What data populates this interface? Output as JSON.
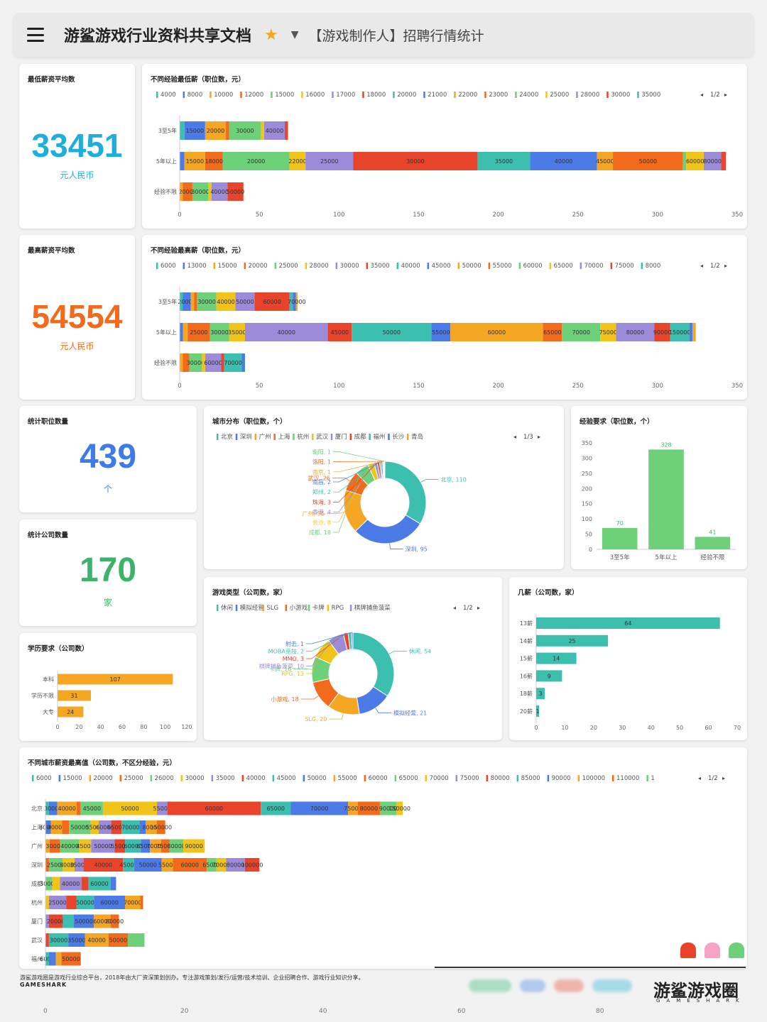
{
  "header": {
    "title": "游鲨游戏行业资料共享文档",
    "subtitle": "【游戏制作人】招聘行情统计"
  },
  "palette": [
    "#3cbfae",
    "#4c7be8",
    "#f5a623",
    "#f26b1d",
    "#6fd07a",
    "#f0c419",
    "#9b8bd9",
    "#e8442c"
  ],
  "kpis": {
    "min_salary": {
      "title": "最低薪资平均数",
      "value": "33451",
      "unit": "元人民币",
      "color": "#1eaedb"
    },
    "max_salary": {
      "title": "最高薪资平均数",
      "value": "54554",
      "unit": "元人民币",
      "color": "#f26b1d"
    },
    "positions": {
      "title": "统计职位数量",
      "value": "439",
      "unit": "个",
      "color": "#3d7be8"
    },
    "companies": {
      "title": "统计公司数量",
      "value": "170",
      "unit": "家",
      "color": "#3bb36a"
    }
  },
  "chart_data": [
    {
      "id": "min_salary_by_exp",
      "type": "bar",
      "title": "不同经验最低薪（职位数，元）",
      "legend": [
        "4000",
        "8000",
        "10000",
        "12000",
        "15000",
        "16000",
        "17000",
        "18000",
        "20000",
        "21000",
        "22000",
        "23000",
        "24000",
        "25000",
        "28000",
        "30000",
        "35000"
      ],
      "legend_page": "1/2",
      "xlim": [
        0,
        350
      ],
      "xticks": [
        "0",
        "50",
        "100",
        "150",
        "200",
        "250",
        "300",
        "350"
      ],
      "rows": [
        {
          "label": "3至5年",
          "segments": [
            {
              "v": 3,
              "t": ""
            },
            {
              "v": 13,
              "t": "15000"
            },
            {
              "v": 13,
              "t": "20000"
            },
            {
              "v": 2,
              "t": ""
            },
            {
              "v": 20,
              "t": "30000"
            },
            {
              "v": 2,
              "t": ""
            },
            {
              "v": 13,
              "t": "40000"
            },
            {
              "v": 2,
              "t": ""
            }
          ]
        },
        {
          "label": "5年以上",
          "segments": [
            {
              "v": 3,
              "t": ""
            },
            {
              "v": 13,
              "t": "15000"
            },
            {
              "v": 11,
              "t": "18000"
            },
            {
              "v": 42,
              "t": "20000"
            },
            {
              "v": 10,
              "t": "22000"
            },
            {
              "v": 30,
              "t": "25000"
            },
            {
              "v": 78,
              "t": "30000"
            },
            {
              "v": 33,
              "t": "35000"
            },
            {
              "v": 42,
              "t": "40000"
            },
            {
              "v": 10,
              "t": "45000"
            },
            {
              "v": 44,
              "t": "50000"
            },
            {
              "v": 2,
              "t": ""
            },
            {
              "v": 11,
              "t": "60000"
            },
            {
              "v": 11,
              "t": "80000"
            },
            {
              "v": 3,
              "t": ""
            }
          ]
        },
        {
          "label": "经验不限",
          "segments": [
            {
              "v": 2,
              "t": ""
            },
            {
              "v": 6,
              "t": "20000"
            },
            {
              "v": 10,
              "t": "30000"
            },
            {
              "v": 2,
              "t": ""
            },
            {
              "v": 10,
              "t": "40000"
            },
            {
              "v": 10,
              "t": "50000"
            }
          ]
        }
      ]
    },
    {
      "id": "max_salary_by_exp",
      "type": "bar",
      "title": "不同经验最高薪（职位数，元）",
      "legend": [
        "6000",
        "13000",
        "15000",
        "20000",
        "25000",
        "28000",
        "30000",
        "35000",
        "40000",
        "45000",
        "50000",
        "55000",
        "60000",
        "65000",
        "70000",
        "75000",
        "8000"
      ],
      "legend_page": "1/2",
      "xlim": [
        0,
        350
      ],
      "xticks": [
        "0",
        "50",
        "100",
        "150",
        "200",
        "250",
        "300",
        "350"
      ],
      "rows": [
        {
          "label": "3至5年",
          "segments": [
            {
              "v": 2,
              "t": ""
            },
            {
              "v": 5,
              "t": "20000"
            },
            {
              "v": 2,
              "t": ""
            },
            {
              "v": 2,
              "t": ""
            },
            {
              "v": 12,
              "t": "30000"
            },
            {
              "v": 12,
              "t": "40000"
            },
            {
              "v": 12,
              "t": "50000"
            },
            {
              "v": 22,
              "t": "60000"
            },
            {
              "v": 2,
              "t": ""
            },
            {
              "v": 2,
              "t": ""
            },
            {
              "v": 1,
              "t": "70000"
            }
          ]
        },
        {
          "label": "5年以上",
          "segments": [
            {
              "v": 2,
              "t": ""
            },
            {
              "v": 3,
              "t": ""
            },
            {
              "v": 14,
              "t": "25000"
            },
            {
              "v": 12,
              "t": "30000"
            },
            {
              "v": 10,
              "t": "35000"
            },
            {
              "v": 52,
              "t": "40000"
            },
            {
              "v": 15,
              "t": "45000"
            },
            {
              "v": 50,
              "t": "50000"
            },
            {
              "v": 12,
              "t": "55000"
            },
            {
              "v": 58,
              "t": "60000"
            },
            {
              "v": 12,
              "t": "65000"
            },
            {
              "v": 24,
              "t": "70000"
            },
            {
              "v": 10,
              "t": "75000"
            },
            {
              "v": 24,
              "t": "80000"
            },
            {
              "v": 10,
              "t": "90000"
            },
            {
              "v": 12,
              "t": "150000"
            },
            {
              "v": 2,
              "t": ""
            },
            {
              "v": 2,
              "t": ""
            }
          ]
        },
        {
          "label": "经验不限",
          "segments": [
            {
              "v": 2,
              "t": ""
            },
            {
              "v": 4,
              "t": ""
            },
            {
              "v": 8,
              "t": "30000"
            },
            {
              "v": 2,
              "t": ""
            },
            {
              "v": 10,
              "t": "60000"
            },
            {
              "v": 2,
              "t": ""
            },
            {
              "v": 11,
              "t": "70000"
            },
            {
              "v": 2,
              "t": ""
            }
          ]
        }
      ]
    },
    {
      "id": "city_distribution",
      "type": "pie",
      "title": "城市分布（职位数，个）",
      "legend": [
        "北京",
        "深圳",
        "广州",
        "上海",
        "杭州",
        "武汉",
        "厦门",
        "成都",
        "福州",
        "长沙",
        "青岛"
      ],
      "legend_page": "1/3",
      "slices": [
        {
          "label": "北京",
          "value": 110
        },
        {
          "label": "深圳",
          "value": 95
        },
        {
          "label": "广州",
          "value": 56
        },
        {
          "label": "武汉",
          "value": 26
        },
        {
          "label": "成都",
          "value": 18
        },
        {
          "label": "长沙",
          "value": 8
        },
        {
          "label": "香港",
          "value": 4
        },
        {
          "label": "珠海",
          "value": 3
        },
        {
          "label": "郑州",
          "value": 2
        },
        {
          "label": "南昌",
          "value": 2
        },
        {
          "label": "南京",
          "value": 1
        },
        {
          "label": "洛阳",
          "value": 1
        },
        {
          "label": "衡阳",
          "value": 1
        }
      ]
    },
    {
      "id": "experience_requirement",
      "type": "bar",
      "title": "经验要求（职位数，个）",
      "categories": [
        "3至5年",
        "5年以上",
        "经验不限"
      ],
      "values": [
        70,
        328,
        41
      ],
      "ylim": [
        0,
        350
      ],
      "yticks": [
        "0",
        "50",
        "100",
        "150",
        "200",
        "250",
        "300",
        "350"
      ]
    },
    {
      "id": "game_type",
      "type": "pie",
      "title": "游戏类型（公司数，家）",
      "legend": [
        "休闲",
        "模拟经营",
        "SLG",
        "小游戏",
        "卡牌",
        "RPG",
        "棋牌捕鱼菠菜"
      ],
      "legend_page": "1/2",
      "slices": [
        {
          "label": "休闲",
          "value": 54
        },
        {
          "label": "模拟经营",
          "value": 21
        },
        {
          "label": "SLG",
          "value": 20
        },
        {
          "label": "小游戏",
          "value": 18
        },
        {
          "label": "卡牌",
          "value": 16
        },
        {
          "label": "RPG",
          "value": 13
        },
        {
          "label": "棋牌捕鱼菠菜",
          "value": 10
        },
        {
          "label": "MMO",
          "value": 3
        },
        {
          "label": "MOBA竞技",
          "value": 2
        },
        {
          "label": "射击",
          "value": 1
        }
      ]
    },
    {
      "id": "salary_months",
      "type": "bar",
      "title": "几薪（公司数，家）",
      "categories": [
        "13薪",
        "14薪",
        "15薪",
        "16薪",
        "18薪",
        "20薪"
      ],
      "values": [
        64,
        25,
        14,
        9,
        3,
        1
      ],
      "xlim": [
        0,
        70
      ],
      "xticks": [
        "0",
        "10",
        "20",
        "30",
        "40",
        "50",
        "60",
        "70"
      ]
    },
    {
      "id": "education",
      "type": "bar",
      "title": "学历要求（公司数）",
      "categories": [
        "本科",
        "学历不限",
        "大专"
      ],
      "values": [
        107,
        31,
        24
      ],
      "xlim": [
        0,
        120
      ],
      "xticks": [
        "0",
        "20",
        "40",
        "60",
        "80",
        "100",
        "120"
      ]
    },
    {
      "id": "max_salary_by_city",
      "type": "bar",
      "title": "不同城市薪资最高值（公司数，不区分经验，元）",
      "legend": [
        "6000",
        "15000",
        "20000",
        "25000",
        "26000",
        "30000",
        "35000",
        "40000",
        "45000",
        "50000",
        "55000",
        "60000",
        "65000",
        "70000",
        "75000",
        "80000",
        "85000",
        "90000",
        "100000",
        "110000",
        "1"
      ],
      "legend_page": "1/2",
      "xlim": [
        0,
        100
      ],
      "xticks": [
        "0",
        "20",
        "40",
        "60",
        "80"
      ],
      "rows": [
        {
          "label": "北京",
          "segments": [
            {
              "v": 0.5,
              "t": ""
            },
            {
              "v": 1.2,
              "t": "30000"
            },
            {
              "v": 2.8,
              "t": "40000"
            },
            {
              "v": 0.6,
              "t": ""
            },
            {
              "v": 3.2,
              "t": "45000"
            },
            {
              "v": 7.8,
              "t": "50000"
            },
            {
              "v": 1.5,
              "t": "55000"
            },
            {
              "v": 13.5,
              "t": "60000"
            },
            {
              "v": 4.3,
              "t": "65000"
            },
            {
              "v": 8.3,
              "t": "70000"
            },
            {
              "v": 1.4,
              "t": "75000"
            },
            {
              "v": 3.2,
              "t": "80000"
            },
            {
              "v": 2.4,
              "t": "90000"
            },
            {
              "v": 0.9,
              "t": "150000"
            }
          ]
        },
        {
          "label": "上海",
          "segments": [
            {
              "v": 0.8,
              "t": "30000"
            },
            {
              "v": 1.6,
              "t": "40000"
            },
            {
              "v": 1.0,
              "t": ""
            },
            {
              "v": 3.1,
              "t": "50000"
            },
            {
              "v": 1.2,
              "t": "55000"
            },
            {
              "v": 1.8,
              "t": "60000"
            },
            {
              "v": 1.5,
              "t": "65000"
            },
            {
              "v": 2.6,
              "t": "70000"
            },
            {
              "v": 0.9,
              "t": ""
            },
            {
              "v": 1.6,
              "t": "80000"
            },
            {
              "v": 1.2,
              "t": "150000"
            }
          ]
        },
        {
          "label": "广州",
          "segments": [
            {
              "v": 0.6,
              "t": ""
            },
            {
              "v": 1.5,
              "t": "30000"
            },
            {
              "v": 2.8,
              "t": "40000"
            },
            {
              "v": 1.7,
              "t": "45000"
            },
            {
              "v": 3.4,
              "t": "50000"
            },
            {
              "v": 1.5,
              "t": "55000"
            },
            {
              "v": 2.3,
              "t": "60000"
            },
            {
              "v": 1.3,
              "t": "65000"
            },
            {
              "v": 1.6,
              "t": "70000"
            },
            {
              "v": 1.2,
              "t": "75000"
            },
            {
              "v": 2.0,
              "t": "80000"
            },
            {
              "v": 3.1,
              "t": "90000"
            }
          ]
        },
        {
          "label": "深圳",
          "segments": [
            {
              "v": 0.5,
              "t": ""
            },
            {
              "v": 2.0,
              "t": "25000"
            },
            {
              "v": 1.7,
              "t": "30000"
            },
            {
              "v": 1.3,
              "t": "35000"
            },
            {
              "v": 5.7,
              "t": "40000"
            },
            {
              "v": 1.6,
              "t": "45000"
            },
            {
              "v": 4.0,
              "t": "50000"
            },
            {
              "v": 1.6,
              "t": "55000"
            },
            {
              "v": 4.9,
              "t": "60000"
            },
            {
              "v": 1.4,
              "t": "65000"
            },
            {
              "v": 1.4,
              "t": "70000"
            },
            {
              "v": 2.7,
              "t": "80000"
            },
            {
              "v": 2.1,
              "t": "100000"
            }
          ]
        },
        {
          "label": "成都",
          "segments": [
            {
              "v": 1.0,
              "t": "30000"
            },
            {
              "v": 1.1,
              "t": ""
            },
            {
              "v": 3.1,
              "t": "40000"
            },
            {
              "v": 1.0,
              "t": ""
            },
            {
              "v": 3.2,
              "t": "60000"
            },
            {
              "v": 0.8,
              "t": ""
            }
          ]
        },
        {
          "label": "杭州",
          "segments": [
            {
              "v": 0.5,
              "t": ""
            },
            {
              "v": 2.5,
              "t": "25000"
            },
            {
              "v": 1.5,
              "t": ""
            },
            {
              "v": 2.5,
              "t": "50000"
            },
            {
              "v": 4.5,
              "t": "60000"
            },
            {
              "v": 2.2,
              "t": "70000"
            },
            {
              "v": 0.4,
              "t": ""
            }
          ]
        },
        {
          "label": "厦门",
          "segments": [
            {
              "v": 0.5,
              "t": ""
            },
            {
              "v": 2.0,
              "t": "20000"
            },
            {
              "v": 1.6,
              "t": ""
            },
            {
              "v": 2.9,
              "t": "50000"
            },
            {
              "v": 2.4,
              "t": "60000"
            },
            {
              "v": 1.2,
              "t": "80000"
            }
          ]
        },
        {
          "label": "武汉",
          "segments": [
            {
              "v": 0.5,
              "t": ""
            },
            {
              "v": 2.8,
              "t": "30000"
            },
            {
              "v": 2.4,
              "t": "35000"
            },
            {
              "v": 3.4,
              "t": "40000"
            },
            {
              "v": 2.8,
              "t": "50000"
            },
            {
              "v": 2.4,
              "t": ""
            }
          ]
        },
        {
          "label": "福州",
          "segments": [
            {
              "v": 0.5,
              "t": "6000"
            },
            {
              "v": 1.0,
              "t": ""
            },
            {
              "v": 0.8,
              "t": ""
            },
            {
              "v": 2.8,
              "t": "50000"
            }
          ]
        }
      ]
    }
  ],
  "footer": {
    "note": "游鲨游戏圈是游戏行业综合平台，2018年由大厂资深策划创办。专注游戏策划/发行/运营/技术培训、企业招聘合作、游戏行业知识分享。",
    "brand": "GAMESHARK",
    "logo": "游鲨游戏圈",
    "logo_sub": "GAMESHARK",
    "bottom_axis": [
      "0",
      "20",
      "40",
      "60",
      "80"
    ]
  }
}
